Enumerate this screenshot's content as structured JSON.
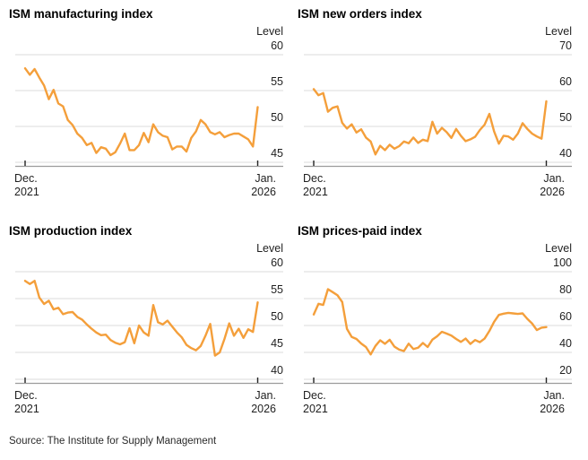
{
  "page": {
    "background": "#ffffff",
    "source_note": "Source: The Institute for Supply Management"
  },
  "colors": {
    "line": "#F49F3B",
    "gridline": "#DBDBDB",
    "axis_line": "#9C9C9C",
    "tick_mark": "#222222",
    "tick_label": "#1F1F1F",
    "title": "#000000",
    "source_text": "#2A2A2A"
  },
  "x_axis": {
    "start_label": [
      "Dec.",
      "2021"
    ],
    "end_label": [
      "Jan.",
      "2026"
    ]
  },
  "chart_data": [
    {
      "type": "line",
      "title": "ISM manufacturing index",
      "unit_label": "Level",
      "frequency": "monthly",
      "x_range": [
        "Dec. 2021",
        "Jan. 2026"
      ],
      "y_ticks": [
        60,
        55,
        50,
        45
      ],
      "ylim": [
        45,
        60
      ],
      "grid": true,
      "values": [
        58.1,
        57.2,
        58.0,
        56.8,
        55.7,
        53.8,
        55.1,
        53.2,
        52.8,
        50.9,
        50.2,
        49.0,
        48.4,
        47.4,
        47.7,
        46.3,
        47.1,
        46.9,
        46.0,
        46.4,
        47.6,
        49.0,
        46.7,
        46.7,
        47.4,
        49.1,
        47.8,
        50.3,
        49.2,
        48.7,
        48.5,
        46.8,
        47.2,
        47.2,
        46.5,
        48.4,
        49.3,
        50.9,
        50.3,
        49.2,
        48.9,
        49.2,
        48.5,
        48.8,
        49.0,
        49.0,
        48.6,
        48.2,
        47.2,
        52.7
      ]
    },
    {
      "type": "line",
      "title": "ISM new orders index",
      "unit_label": "Level",
      "frequency": "monthly",
      "x_range": [
        "Dec. 2021",
        "Jan. 2026"
      ],
      "y_ticks": [
        70,
        60,
        50,
        40
      ],
      "ylim": [
        40,
        70
      ],
      "grid": true,
      "values": [
        60.4,
        58.7,
        59.3,
        54.1,
        55.2,
        55.6,
        51.0,
        49.4,
        50.6,
        48.3,
        49.2,
        46.9,
        45.8,
        42.2,
        44.6,
        43.4,
        44.9,
        43.8,
        44.5,
        45.8,
        45.3,
        46.9,
        45.4,
        46.3,
        45.9,
        51.3,
        48.0,
        49.6,
        48.4,
        46.8,
        49.3,
        47.4,
        45.9,
        46.4,
        47.1,
        49.0,
        50.5,
        53.5,
        48.6,
        45.2,
        47.4,
        47.2,
        46.3,
        48.0,
        50.9,
        49.3,
        48.0,
        47.2,
        46.6,
        57.0
      ]
    },
    {
      "type": "line",
      "title": "ISM production index",
      "unit_label": "Level",
      "frequency": "monthly",
      "x_range": [
        "Dec. 2021",
        "Jan. 2026"
      ],
      "y_ticks": [
        60,
        55,
        50,
        45,
        40
      ],
      "ylim": [
        40,
        60
      ],
      "grid": true,
      "values": [
        58.3,
        57.7,
        58.3,
        55.2,
        54.0,
        54.6,
        53.0,
        53.3,
        52.1,
        52.4,
        52.5,
        51.6,
        51.1,
        50.2,
        49.4,
        48.7,
        48.2,
        48.3,
        47.3,
        46.8,
        46.5,
        46.9,
        49.5,
        46.7,
        50.0,
        48.7,
        48.1,
        53.8,
        50.6,
        50.2,
        50.9,
        49.8,
        48.7,
        47.8,
        46.4,
        45.8,
        45.4,
        46.2,
        48.1,
        50.3,
        44.4,
        45.0,
        47.5,
        50.4,
        48.1,
        49.4,
        47.7,
        49.3,
        48.8,
        54.3
      ]
    },
    {
      "type": "line",
      "title": "ISM prices-paid index",
      "unit_label": "Level",
      "frequency": "monthly",
      "x_range": [
        "Dec. 2021",
        "Jan. 2026"
      ],
      "y_ticks": [
        100,
        80,
        60,
        40,
        20
      ],
      "ylim": [
        20,
        100
      ],
      "grid": true,
      "values": [
        68.2,
        76.1,
        75.3,
        87.0,
        84.8,
        82.5,
        77.5,
        57.5,
        51.5,
        50.0,
        46.6,
        44.0,
        38.5,
        44.8,
        49.0,
        46.4,
        49.4,
        44.3,
        42.1,
        41.0,
        46.5,
        42.5,
        43.5,
        47.0,
        44.0,
        49.5,
        52.0,
        55.3,
        54.0,
        52.5,
        50.0,
        47.8,
        50.3,
        46.3,
        49.2,
        47.6,
        50.3,
        55.9,
        62.7,
        67.9,
        68.8,
        69.4,
        69.0,
        68.6,
        69.0,
        64.9,
        61.5,
        56.6,
        58.4,
        58.8
      ]
    }
  ]
}
